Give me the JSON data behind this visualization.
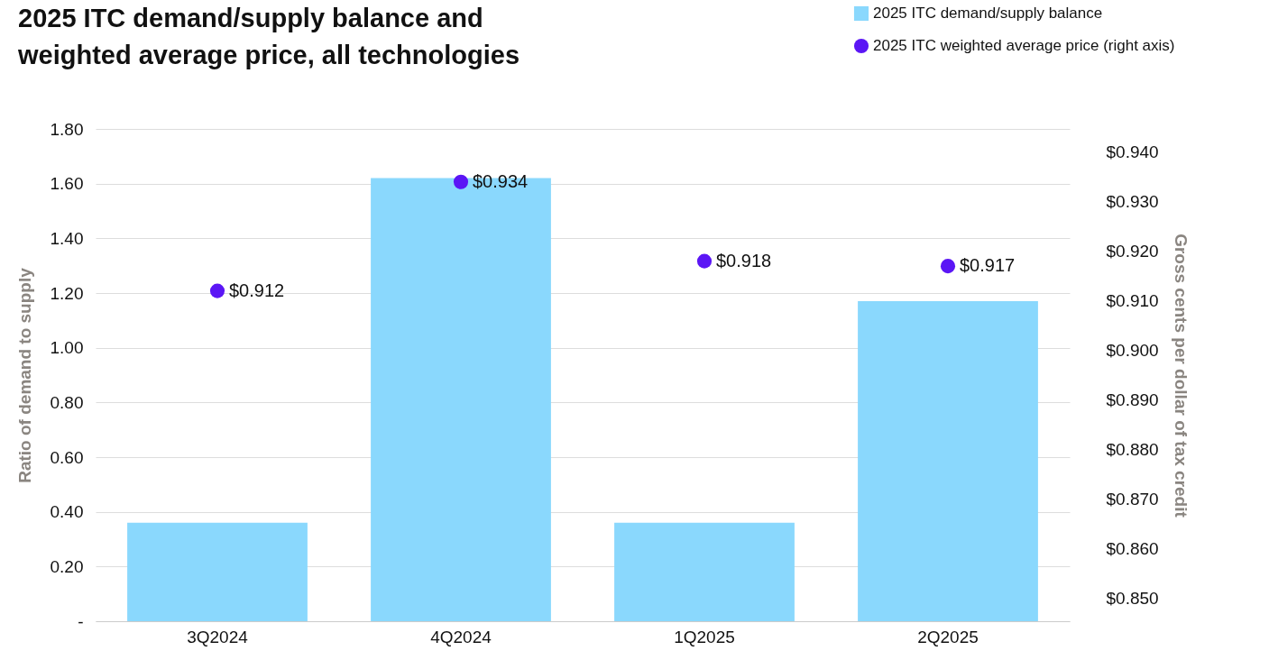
{
  "chart_data": {
    "type": "bar",
    "title": "2025 ITC demand/supply balance and weighted average price, all technologies",
    "ylabel": "Ratio of demand to supply",
    "y2label": "Gross cents per dollar of tax credit",
    "categories": [
      "3Q2024",
      "4Q2024",
      "1Q2025",
      "2Q2025"
    ],
    "series": [
      {
        "name": "2025 ITC demand/supply balance",
        "color": "#8ad8fd",
        "values": [
          0.36,
          1.62,
          0.36,
          1.17
        ]
      },
      {
        "name": "2025 ITC weighted average price (right axis)",
        "type": "scatter",
        "axis": "y2",
        "color": "#5b16f5",
        "marker": "circle",
        "values": [
          0.912,
          0.934,
          0.918,
          0.917
        ],
        "value_labels": [
          "$0.912",
          "$0.934",
          "$0.918",
          "$0.917"
        ]
      }
    ],
    "ylim": [
      0,
      1.8
    ],
    "yticks": [
      {
        "value": 0,
        "label": "-"
      },
      {
        "value": 0.2,
        "label": "0.20"
      },
      {
        "value": 0.4,
        "label": "0.40"
      },
      {
        "value": 0.6,
        "label": "0.60"
      },
      {
        "value": 0.8,
        "label": "0.80"
      },
      {
        "value": 1,
        "label": "1.00"
      },
      {
        "value": 1.2,
        "label": "1.20"
      },
      {
        "value": 1.4,
        "label": "1.40"
      },
      {
        "value": 1.6,
        "label": "1.60"
      },
      {
        "value": 1.8,
        "label": "1.80"
      }
    ],
    "y2lim": [
      0.8453,
      0.9447
    ],
    "y2ticks": [
      {
        "value": 0.85,
        "label": "$0.850"
      },
      {
        "value": 0.86,
        "label": "$0.860"
      },
      {
        "value": 0.87,
        "label": "$0.870"
      },
      {
        "value": 0.88,
        "label": "$0.880"
      },
      {
        "value": 0.89,
        "label": "$0.890"
      },
      {
        "value": 0.9,
        "label": "$0.900"
      },
      {
        "value": 0.91,
        "label": "$0.910"
      },
      {
        "value": 0.92,
        "label": "$0.920"
      },
      {
        "value": 0.93,
        "label": "$0.930"
      },
      {
        "value": 0.94,
        "label": "$0.940"
      }
    ],
    "grid": "y",
    "legend": "top right"
  }
}
